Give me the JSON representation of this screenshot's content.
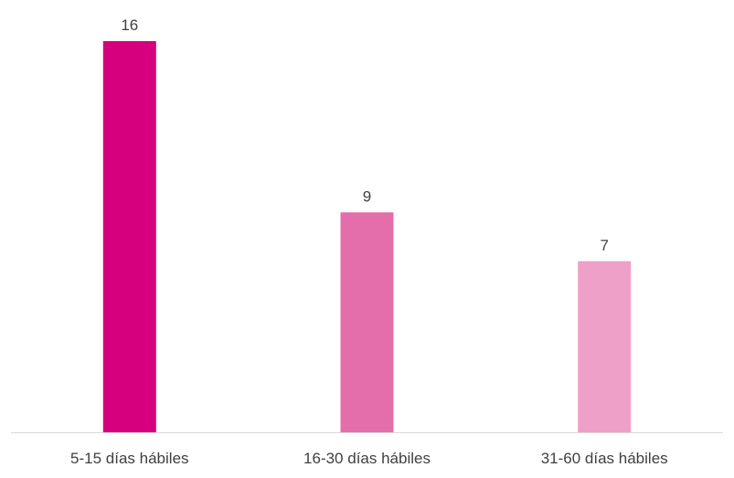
{
  "chart_data": {
    "type": "bar",
    "title": "",
    "xlabel": "",
    "ylabel": "",
    "categories": [
      "5-15 días hábiles",
      "16-30 días hábiles",
      "31-60 días hábiles"
    ],
    "values": [
      16,
      9,
      7
    ],
    "ylim": [
      0,
      16
    ],
    "grid": false,
    "legend": "none",
    "data_labels": true,
    "colors": [
      "#D6007E",
      "#E46EAB",
      "#EFA0C8"
    ],
    "axis_color": "#D9D9D9",
    "text_color": "#404040"
  }
}
